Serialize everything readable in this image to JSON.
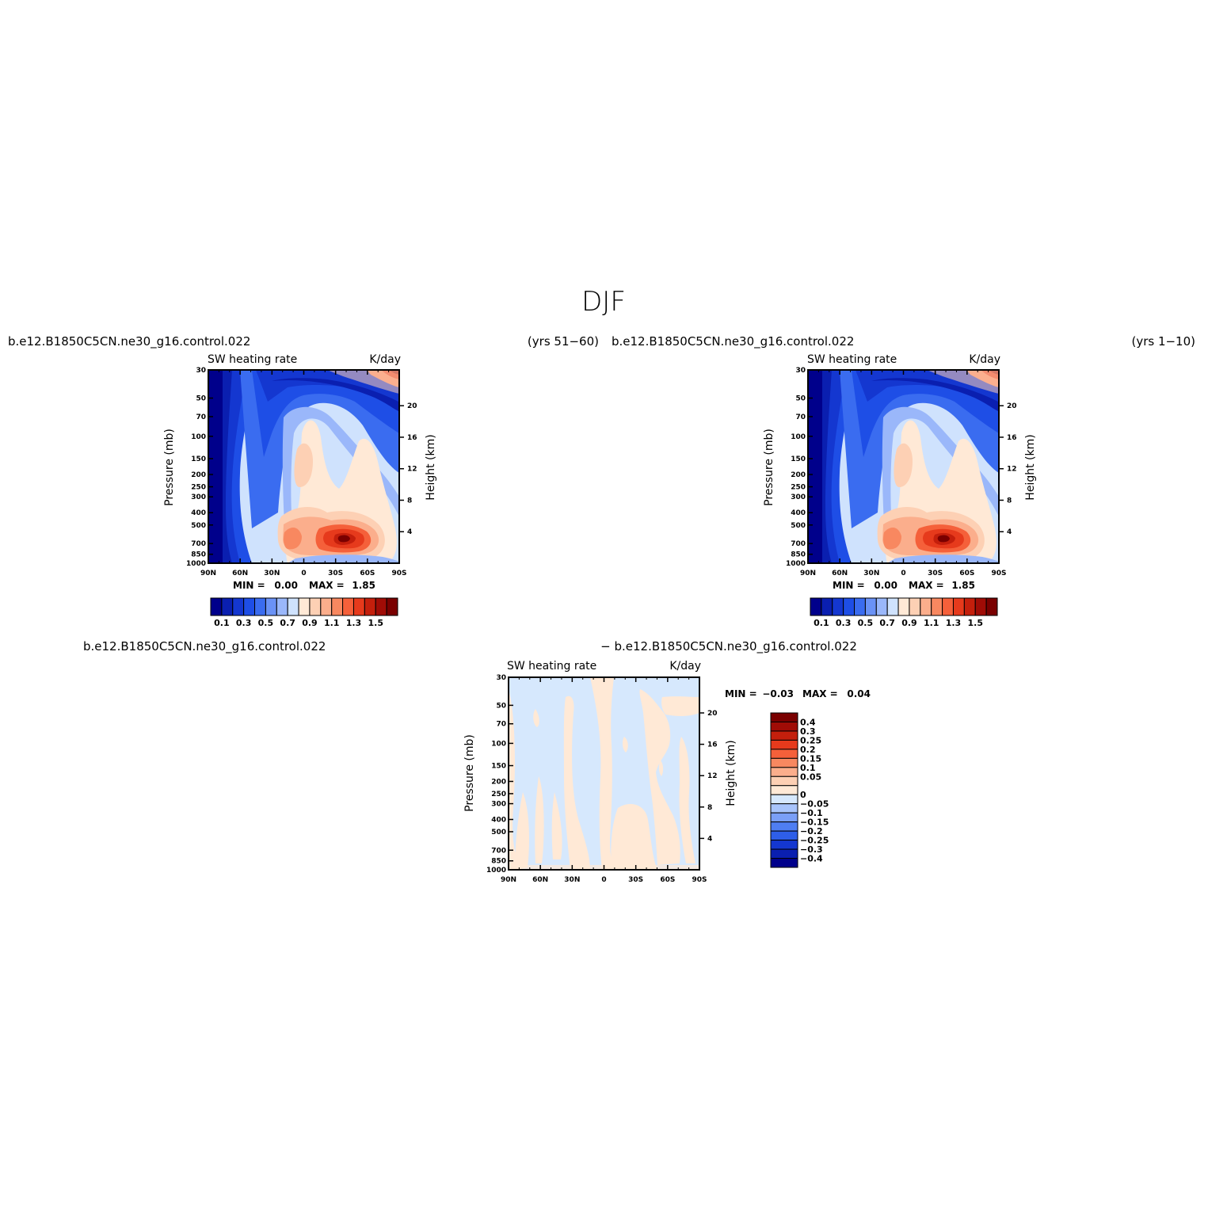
{
  "figure_title": "DJF",
  "chart_data": [
    {
      "type": "heatmap",
      "header_left": "b.e12.B1850C5CN.ne30_g16.control.022",
      "header_right": "(yrs 51−60)",
      "title_left": "SW heating rate",
      "title_right": "K/day",
      "ylabel": "Pressure (mb)",
      "ylabel_right": "Height (km)",
      "x_ticks": [
        "90N",
        "60N",
        "30N",
        "0",
        "30S",
        "60S",
        "90S"
      ],
      "y_ticks": [
        "30",
        "50",
        "70",
        "100",
        "150",
        "200",
        "250",
        "300",
        "400",
        "500",
        "700",
        "850",
        "1000"
      ],
      "y_ticks_right": [
        "20",
        "16",
        "12",
        "8",
        "4"
      ],
      "min_label": "MIN =",
      "min_value": "0.00",
      "max_label": "MAX =",
      "max_value": "1.85",
      "colorbar_labels": [
        "0.1",
        "0.3",
        "0.5",
        "0.7",
        "0.9",
        "1.1",
        "1.3",
        "1.5"
      ],
      "colorbar_colors": [
        "#00008b",
        "#0a1fb0",
        "#1437d0",
        "#1e4ee6",
        "#3a6cf0",
        "#6a92f6",
        "#9ab7fa",
        "#cfe2fd",
        "#ffe9d6",
        "#fdd0b4",
        "#fbae8c",
        "#f88860",
        "#f5603a",
        "#e63a1c",
        "#c41f0c",
        "#a00c06",
        "#7a0000"
      ],
      "colorbar_side": "bottom"
    },
    {
      "type": "heatmap",
      "header_left": "b.e12.B1850C5CN.ne30_g16.control.022",
      "header_right": "(yrs 1−10)",
      "title_left": "SW heating rate",
      "title_right": "K/day",
      "ylabel": "Pressure (mb)",
      "ylabel_right": "Height (km)",
      "x_ticks": [
        "90N",
        "60N",
        "30N",
        "0",
        "30S",
        "60S",
        "90S"
      ],
      "y_ticks": [
        "30",
        "50",
        "70",
        "100",
        "150",
        "200",
        "250",
        "300",
        "400",
        "500",
        "700",
        "850",
        "1000"
      ],
      "y_ticks_right": [
        "20",
        "16",
        "12",
        "8",
        "4"
      ],
      "min_label": "MIN =",
      "min_value": "0.00",
      "max_label": "MAX =",
      "max_value": "1.85",
      "colorbar_labels": [
        "0.1",
        "0.3",
        "0.5",
        "0.7",
        "0.9",
        "1.1",
        "1.3",
        "1.5"
      ],
      "colorbar_side": "bottom"
    },
    {
      "type": "heatmap",
      "header_left": "b.e12.B1850C5CN.ne30_g16.control.022",
      "header_center": "− b.e12.B1850C5CN.ne30_g16.control.022",
      "title_left": "SW heating rate",
      "title_right": "K/day",
      "ylabel": "Pressure (mb)",
      "ylabel_right": "Height (km)",
      "x_ticks": [
        "90N",
        "60N",
        "30N",
        "0",
        "30S",
        "60S",
        "90S"
      ],
      "y_ticks": [
        "30",
        "50",
        "70",
        "100",
        "150",
        "200",
        "250",
        "300",
        "400",
        "500",
        "700",
        "850",
        "1000"
      ],
      "y_ticks_right": [
        "20",
        "16",
        "12",
        "8",
        "4"
      ],
      "min_label": "MIN =",
      "min_value": "−0.03",
      "max_label": "MAX =",
      "max_value": "0.04",
      "colorbar_labels": [
        "0.4",
        "0.3",
        "0.25",
        "0.2",
        "0.15",
        "0.1",
        "0.05",
        "0",
        "−0.05",
        "−0.1",
        "−0.15",
        "−0.2",
        "−0.25",
        "−0.3",
        "−0.4"
      ],
      "colorbar_colors": [
        "#7a0000",
        "#a00c06",
        "#c41f0c",
        "#e63a1c",
        "#f5603a",
        "#f88860",
        "#fbae8c",
        "#fdd0b4",
        "#ffe9d6",
        "#d6e8fd",
        "#a8c4fb",
        "#7a9ff7",
        "#4f7ef2",
        "#2e5ee8",
        "#1437d0",
        "#0a1fb0",
        "#00008b"
      ],
      "colorbar_side": "right"
    }
  ]
}
